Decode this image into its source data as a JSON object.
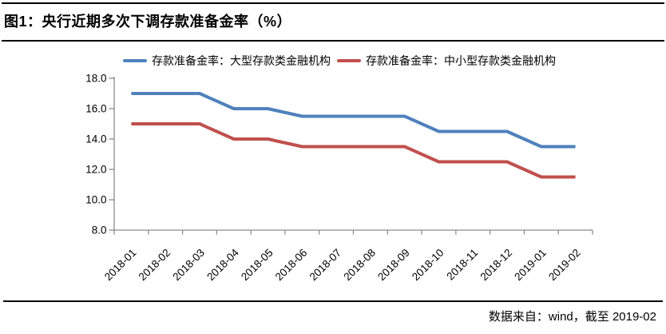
{
  "title": "图1：央行近期多次下调存款准备金率（%）",
  "footer": "数据来自：wind，截至 2019-02",
  "chart_data": {
    "type": "line",
    "title": "央行近期多次下调存款准备金率（%）",
    "categories": [
      "2018-01",
      "2018-02",
      "2018-03",
      "2018-04",
      "2018-05",
      "2018-06",
      "2018-07",
      "2018-08",
      "2018-09",
      "2018-10",
      "2018-11",
      "2018-12",
      "2019-01",
      "2019-02"
    ],
    "series": [
      {
        "name": "存款准备金率：大型存款类金融机构",
        "color": "#4F81BD",
        "values": [
          17.0,
          17.0,
          17.0,
          16.0,
          16.0,
          15.5,
          15.5,
          15.5,
          15.5,
          14.5,
          14.5,
          14.5,
          13.5,
          13.5
        ]
      },
      {
        "name": "存款准备金率：中小型存款类金融机构",
        "color": "#C0504D",
        "values": [
          15.0,
          15.0,
          15.0,
          14.0,
          14.0,
          13.5,
          13.5,
          13.5,
          13.5,
          12.5,
          12.5,
          12.5,
          11.5,
          11.5
        ]
      }
    ],
    "xlabel": "",
    "ylabel": "",
    "ylim": [
      8.0,
      18.0
    ],
    "ytick_step": 2.0,
    "ytick_labels": [
      "8.0",
      "10.0",
      "12.0",
      "14.0",
      "16.0",
      "18.0"
    ],
    "grid": false,
    "legend_position": "top",
    "axis_color": "#8C8C8C"
  }
}
